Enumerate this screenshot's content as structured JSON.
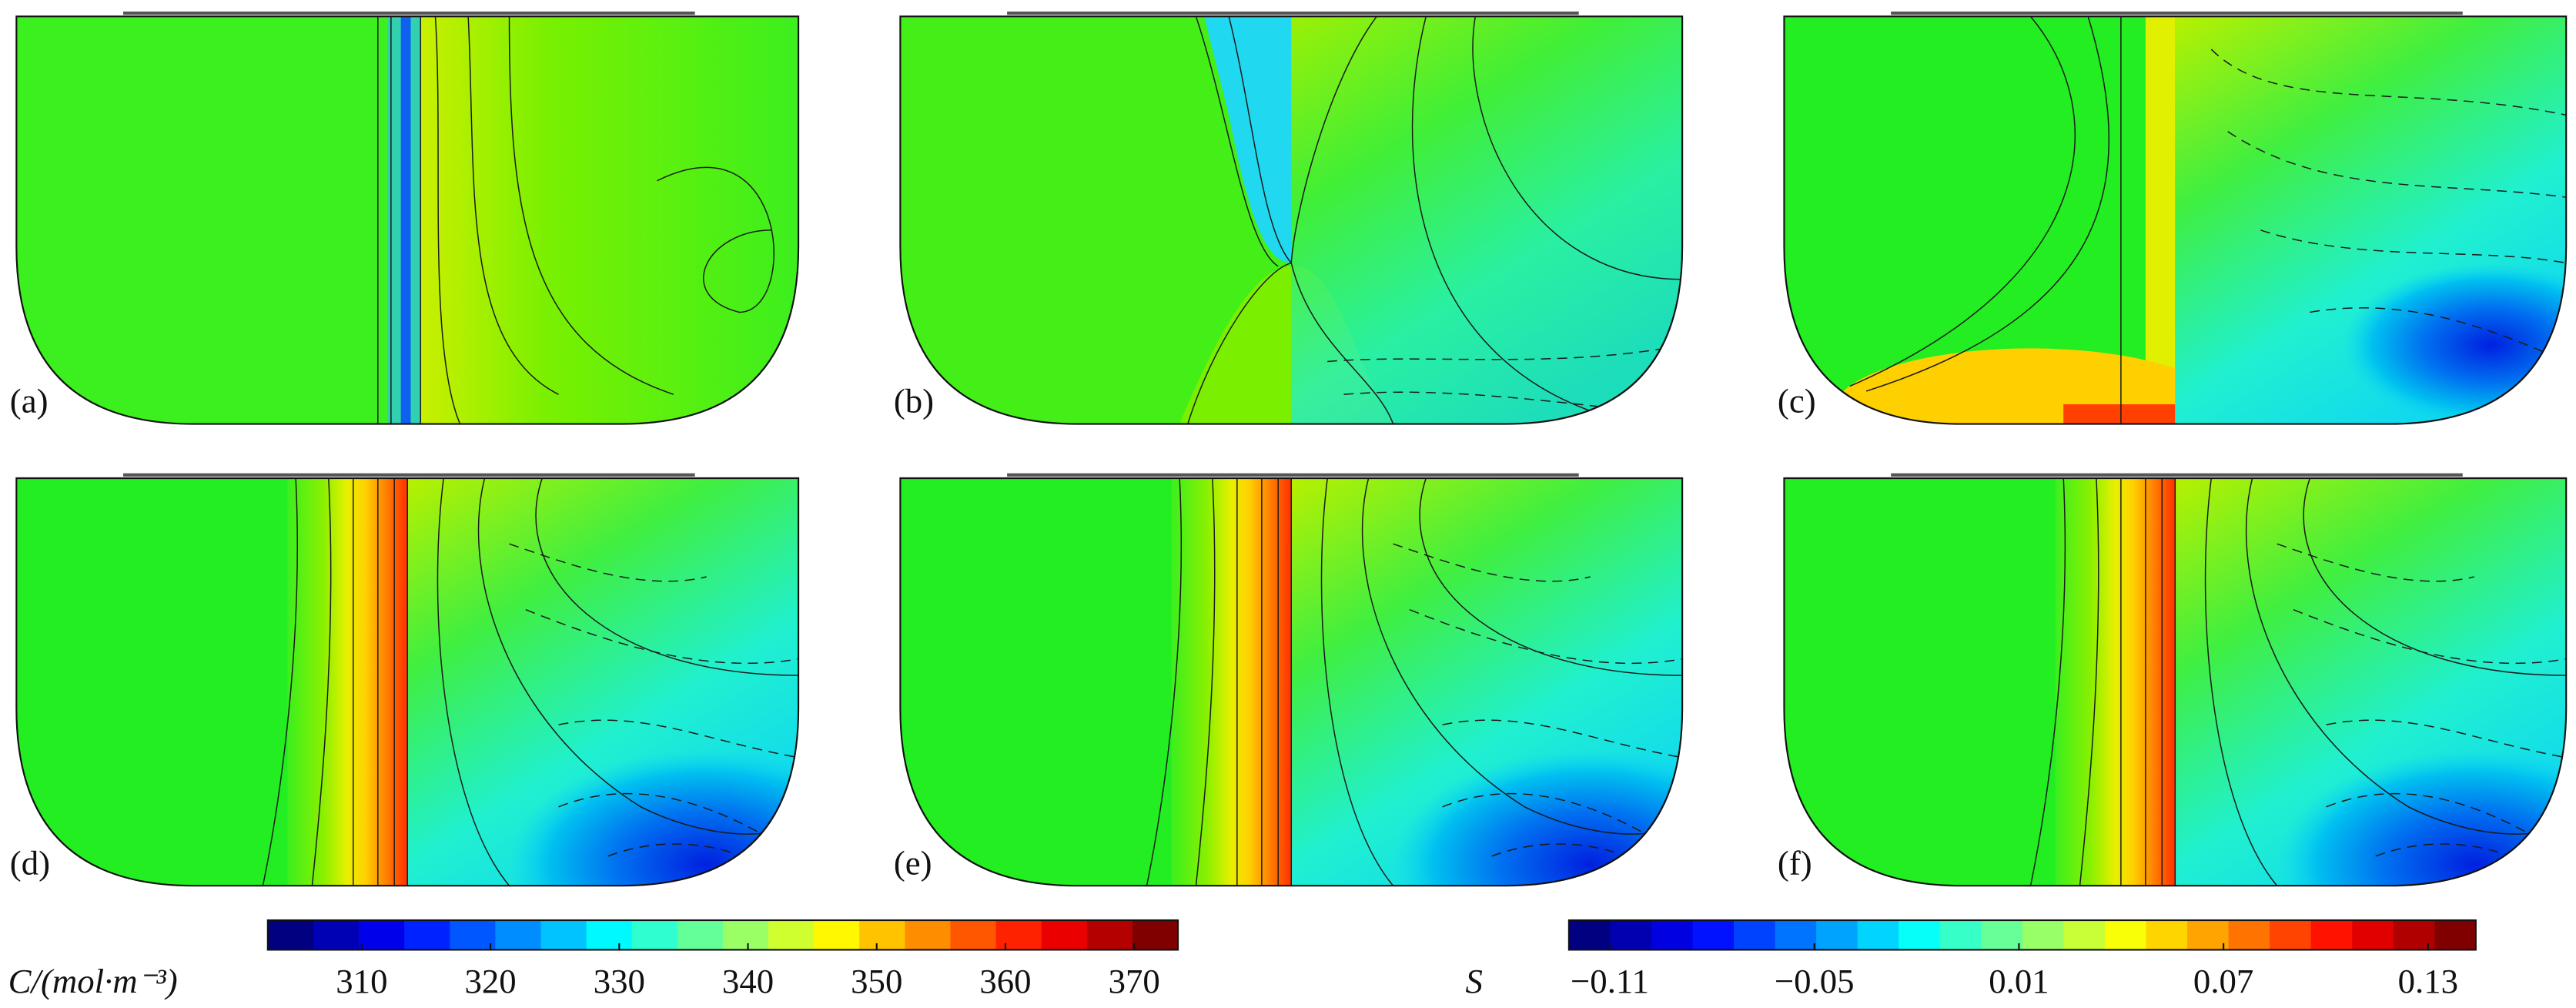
{
  "panels": [
    {
      "label": "(a)"
    },
    {
      "label": "(b)"
    },
    {
      "label": "(c)"
    },
    {
      "label": "(d)"
    },
    {
      "label": "(e)"
    },
    {
      "label": "(f)"
    }
  ],
  "colorbars": [
    {
      "label": "C/(mol·m⁻³)",
      "lim": [
        302.7,
        373.4
      ],
      "segments": 20,
      "ticks": [
        310,
        320,
        330,
        340,
        350,
        360,
        370
      ]
    },
    {
      "label": "S",
      "lim": [
        -0.122,
        0.144
      ],
      "segments": 22,
      "ticks": [
        {
          "value": -0.11,
          "label": "−0.11"
        },
        {
          "value": -0.05,
          "label": "−0.05"
        },
        0.01,
        0.07,
        0.13
      ]
    }
  ]
}
